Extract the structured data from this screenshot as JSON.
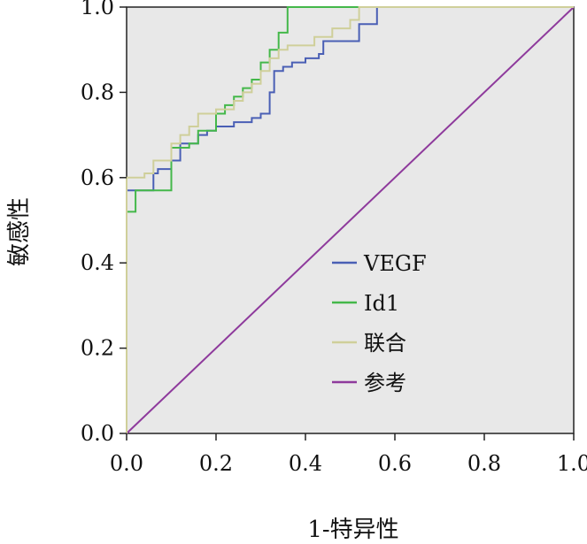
{
  "chart_data": {
    "type": "line",
    "title": "",
    "xlabel": "1-特异性",
    "ylabel": "敏感性",
    "xlim": [
      0,
      1
    ],
    "ylim": [
      0,
      1
    ],
    "xticks": [
      "0.0",
      "0.2",
      "0.4",
      "0.6",
      "0.8",
      "1.0"
    ],
    "yticks": [
      "0.0",
      "0.2",
      "0.4",
      "0.6",
      "0.8",
      "1.0"
    ],
    "grid": false,
    "plot_background": "#e8e8e8",
    "legend_position": "center-right",
    "series": [
      {
        "name": "VEGF",
        "color": "#4a5fb5",
        "points": [
          [
            0,
            0
          ],
          [
            0,
            0.57
          ],
          [
            0.06,
            0.57
          ],
          [
            0.06,
            0.61
          ],
          [
            0.07,
            0.61
          ],
          [
            0.07,
            0.62
          ],
          [
            0.1,
            0.62
          ],
          [
            0.1,
            0.64
          ],
          [
            0.12,
            0.64
          ],
          [
            0.12,
            0.68
          ],
          [
            0.16,
            0.68
          ],
          [
            0.16,
            0.7
          ],
          [
            0.18,
            0.7
          ],
          [
            0.18,
            0.71
          ],
          [
            0.2,
            0.71
          ],
          [
            0.2,
            0.72
          ],
          [
            0.24,
            0.72
          ],
          [
            0.24,
            0.73
          ],
          [
            0.28,
            0.73
          ],
          [
            0.28,
            0.74
          ],
          [
            0.3,
            0.74
          ],
          [
            0.3,
            0.75
          ],
          [
            0.32,
            0.75
          ],
          [
            0.32,
            0.8
          ],
          [
            0.33,
            0.8
          ],
          [
            0.33,
            0.85
          ],
          [
            0.35,
            0.85
          ],
          [
            0.35,
            0.86
          ],
          [
            0.37,
            0.86
          ],
          [
            0.37,
            0.87
          ],
          [
            0.4,
            0.87
          ],
          [
            0.4,
            0.88
          ],
          [
            0.43,
            0.88
          ],
          [
            0.43,
            0.89
          ],
          [
            0.44,
            0.89
          ],
          [
            0.44,
            0.92
          ],
          [
            0.52,
            0.92
          ],
          [
            0.52,
            0.96
          ],
          [
            0.56,
            0.96
          ],
          [
            0.56,
            1.0
          ],
          [
            1.0,
            1.0
          ]
        ]
      },
      {
        "name": "Id1",
        "color": "#44b84a",
        "points": [
          [
            0,
            0
          ],
          [
            0,
            0.52
          ],
          [
            0.02,
            0.52
          ],
          [
            0.02,
            0.57
          ],
          [
            0.1,
            0.57
          ],
          [
            0.1,
            0.67
          ],
          [
            0.14,
            0.67
          ],
          [
            0.14,
            0.68
          ],
          [
            0.16,
            0.68
          ],
          [
            0.16,
            0.71
          ],
          [
            0.2,
            0.71
          ],
          [
            0.2,
            0.75
          ],
          [
            0.22,
            0.75
          ],
          [
            0.22,
            0.77
          ],
          [
            0.24,
            0.77
          ],
          [
            0.24,
            0.79
          ],
          [
            0.26,
            0.79
          ],
          [
            0.26,
            0.81
          ],
          [
            0.28,
            0.81
          ],
          [
            0.28,
            0.83
          ],
          [
            0.3,
            0.83
          ],
          [
            0.3,
            0.87
          ],
          [
            0.32,
            0.87
          ],
          [
            0.32,
            0.9
          ],
          [
            0.34,
            0.9
          ],
          [
            0.34,
            0.94
          ],
          [
            0.36,
            0.94
          ],
          [
            0.36,
            1.0
          ],
          [
            1.0,
            1.0
          ]
        ]
      },
      {
        "name": "联合",
        "color": "#cfcf9a",
        "points": [
          [
            0,
            0
          ],
          [
            0,
            0.6
          ],
          [
            0.04,
            0.6
          ],
          [
            0.04,
            0.61
          ],
          [
            0.06,
            0.61
          ],
          [
            0.06,
            0.64
          ],
          [
            0.1,
            0.64
          ],
          [
            0.1,
            0.68
          ],
          [
            0.12,
            0.68
          ],
          [
            0.12,
            0.7
          ],
          [
            0.14,
            0.7
          ],
          [
            0.14,
            0.72
          ],
          [
            0.16,
            0.72
          ],
          [
            0.16,
            0.75
          ],
          [
            0.2,
            0.75
          ],
          [
            0.2,
            0.76
          ],
          [
            0.24,
            0.76
          ],
          [
            0.24,
            0.78
          ],
          [
            0.26,
            0.78
          ],
          [
            0.26,
            0.8
          ],
          [
            0.28,
            0.8
          ],
          [
            0.28,
            0.82
          ],
          [
            0.3,
            0.82
          ],
          [
            0.3,
            0.85
          ],
          [
            0.32,
            0.85
          ],
          [
            0.32,
            0.88
          ],
          [
            0.34,
            0.88
          ],
          [
            0.34,
            0.9
          ],
          [
            0.36,
            0.9
          ],
          [
            0.36,
            0.91
          ],
          [
            0.42,
            0.91
          ],
          [
            0.42,
            0.93
          ],
          [
            0.46,
            0.93
          ],
          [
            0.46,
            0.95
          ],
          [
            0.5,
            0.95
          ],
          [
            0.5,
            0.97
          ],
          [
            0.52,
            0.97
          ],
          [
            0.52,
            1.0
          ],
          [
            1.0,
            1.0
          ]
        ]
      },
      {
        "name": "参考",
        "color": "#8e3a9c",
        "points": [
          [
            0,
            0
          ],
          [
            1,
            1
          ]
        ]
      }
    ]
  }
}
